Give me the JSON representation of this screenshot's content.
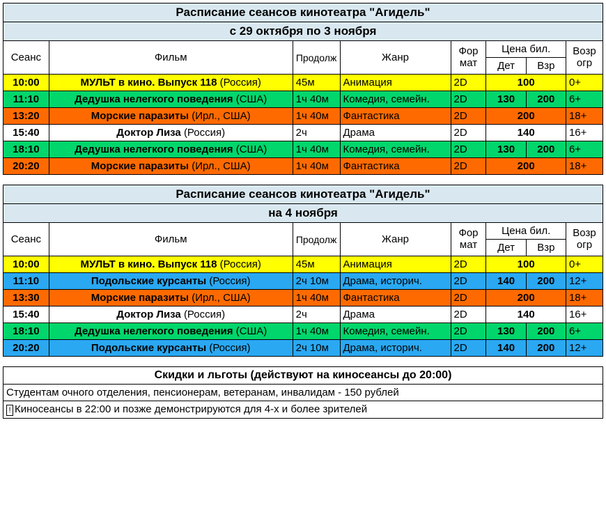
{
  "colors": {
    "title_bg": "#d9e8f0",
    "yellow": "#ffff00",
    "green": "#00d66b",
    "orange": "#ff6a00",
    "white": "#ffffff",
    "blue": "#2aa8f2"
  },
  "columns": {
    "time": "Сеанс",
    "film": "Фильм",
    "duration": "Продолж",
    "genre": "Жанр",
    "format": "Фор мат",
    "price": "Цена бил.",
    "price_child": "Дет",
    "price_adult": "Взр",
    "age": "Возр огр"
  },
  "blocks": [
    {
      "title_line1": "Расписание сеансов кинотеатра \"Агидель\"",
      "title_line2": "с 29 октября по 3 ноября",
      "rows": [
        {
          "bg": "yellow",
          "time": "10:00",
          "film": "МУЛЬТ в кино. Выпуск 118",
          "country": "(Россия)",
          "dur": "45м",
          "genre": "Анимация",
          "fmt": "2D",
          "pchild": "",
          "padult": "",
          "pmerged": "100",
          "age": "0+"
        },
        {
          "bg": "green",
          "time": "11:10",
          "film": "Дедушка нелегкого поведения",
          "country": "(США)",
          "dur": "1ч 40м",
          "genre": "Комедия, семейн.",
          "fmt": "2D",
          "pchild": "130",
          "padult": "200",
          "age": "6+"
        },
        {
          "bg": "orange",
          "time": "13:20",
          "film": "Морские паразиты",
          "country": "(Ирл., США)",
          "dur": "1ч 40м",
          "genre": "Фантастика",
          "fmt": "2D",
          "pchild": "",
          "padult": "",
          "pmerged": "200",
          "age": "18+"
        },
        {
          "bg": "white",
          "time": "15:40",
          "film": "Доктор Лиза",
          "country": "(Россия)",
          "dur": "2ч",
          "genre": "Драма",
          "fmt": "2D",
          "pchild": "",
          "padult": "",
          "pmerged": "140",
          "age": "16+"
        },
        {
          "bg": "green",
          "time": "18:10",
          "film": "Дедушка нелегкого поведения",
          "country": "(США)",
          "dur": "1ч 40м",
          "genre": "Комедия, семейн.",
          "fmt": "2D",
          "pchild": "130",
          "padult": "200",
          "age": "6+"
        },
        {
          "bg": "orange",
          "time": "20:20",
          "film": "Морские паразиты",
          "country": "(Ирл., США)",
          "dur": "1ч 40м",
          "genre": "Фантастика",
          "fmt": "2D",
          "pchild": "",
          "padult": "",
          "pmerged": "200",
          "age": "18+"
        }
      ]
    },
    {
      "title_line1": "Расписание сеансов кинотеатра \"Агидель\"",
      "title_line2": "на 4 ноября",
      "rows": [
        {
          "bg": "yellow",
          "time": "10:00",
          "film": "МУЛЬТ в кино. Выпуск 118",
          "country": "(Россия)",
          "dur": "45м",
          "genre": "Анимация",
          "fmt": "2D",
          "pchild": "",
          "padult": "",
          "pmerged": "100",
          "age": "0+"
        },
        {
          "bg": "blue",
          "time": "11:10",
          "film": "Подольские курсанты",
          "country": "(Россия)",
          "dur": "2ч 10м",
          "genre": "Драма, историч.",
          "fmt": "2D",
          "pchild": "140",
          "padult": "200",
          "age": "12+"
        },
        {
          "bg": "orange",
          "time": "13:30",
          "film": "Морские паразиты",
          "country": "(Ирл., США)",
          "dur": "1ч 40м",
          "genre": "Фантастика",
          "fmt": "2D",
          "pchild": "",
          "padult": "",
          "pmerged": "200",
          "age": "18+"
        },
        {
          "bg": "white",
          "time": "15:40",
          "film": "Доктор Лиза",
          "country": "(Россия)",
          "dur": "2ч",
          "genre": "Драма",
          "fmt": "2D",
          "pchild": "",
          "padult": "",
          "pmerged": "140",
          "age": "16+"
        },
        {
          "bg": "green",
          "time": "18:10",
          "film": "Дедушка нелегкого поведения",
          "country": "(США)",
          "dur": "1ч 40м",
          "genre": "Комедия, семейн.",
          "fmt": "2D",
          "pchild": "130",
          "padult": "200",
          "age": "6+"
        },
        {
          "bg": "blue",
          "time": "20:20",
          "film": "Подольские курсанты",
          "country": "(Россия)",
          "dur": "2ч 10м",
          "genre": "Драма, историч.",
          "fmt": "2D",
          "pchild": "140",
          "padult": "200",
          "age": "12+"
        }
      ]
    }
  ],
  "footer": {
    "title": "Скидки и льготы (действуют на киносеансы до 20:00)",
    "line1": "Студентам очного отделения, пенсионерам, ветеранам, инвалидам - 150 рублей",
    "line2_pre": "Киносеансы в 22:00 и позже демонстрируются для 4-х и более зрителей"
  }
}
